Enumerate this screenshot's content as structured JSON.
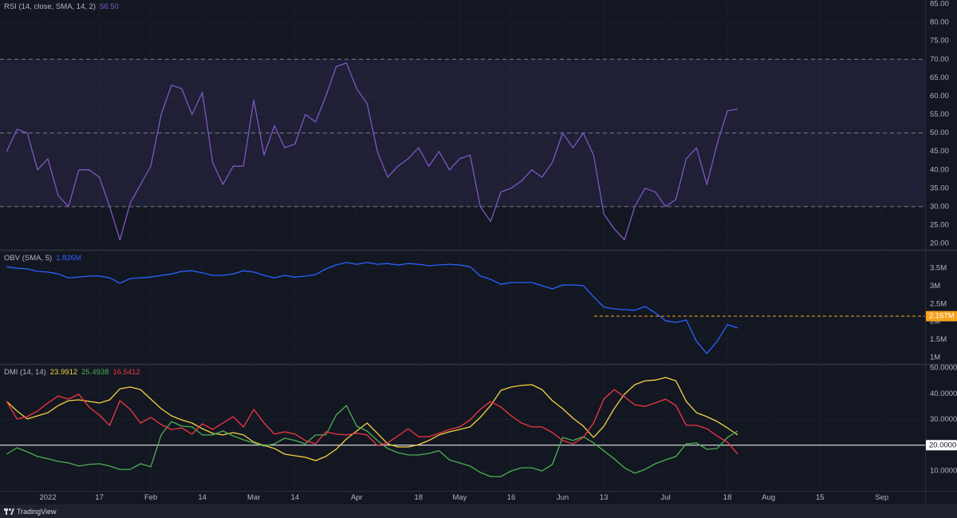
{
  "chart_data": [
    {
      "type": "line",
      "title": "RSI (14, close, SMA, 14, 2)",
      "ylim": [
        18.5,
        86.1
      ],
      "yticks": [
        {
          "value": 20,
          "label": "20.00"
        },
        {
          "value": 25,
          "label": "25.00"
        },
        {
          "value": 30,
          "label": "30.00"
        },
        {
          "value": 35,
          "label": "35.00"
        },
        {
          "value": 40,
          "label": "40.00"
        },
        {
          "value": 45,
          "label": "45.00"
        },
        {
          "value": 50,
          "label": "50.00"
        },
        {
          "value": 55,
          "label": "55.00"
        },
        {
          "value": 60,
          "label": "60.00"
        },
        {
          "value": 65,
          "label": "65.00"
        },
        {
          "value": 70,
          "label": "70.00"
        },
        {
          "value": 75,
          "label": "75.00"
        },
        {
          "value": 80,
          "label": "80.00"
        },
        {
          "value": 85,
          "label": "85.00"
        }
      ],
      "grid": true,
      "bands": {
        "lower": 30,
        "middle": 50,
        "upper": 70,
        "color": "#7e57c2"
      },
      "series": [
        {
          "color": "#7e57c2",
          "last_label": "56.50",
          "values": [
            45,
            51,
            50,
            40,
            43,
            33,
            30,
            40,
            40,
            38,
            30,
            21,
            31,
            36,
            41,
            55,
            63,
            62,
            55,
            61,
            42,
            36,
            41,
            41,
            59,
            44,
            52,
            46,
            47,
            55,
            53,
            60,
            68,
            69,
            62,
            58,
            45,
            38,
            41,
            43,
            46,
            41,
            45,
            40,
            43,
            44,
            30,
            26,
            34,
            35,
            37,
            40,
            38,
            42,
            50,
            46,
            50,
            44,
            28,
            24,
            21,
            30,
            35,
            34,
            30,
            32,
            43,
            46,
            36,
            47,
            56,
            56.5,
            null,
            null,
            null,
            null,
            null,
            null,
            null,
            null,
            null,
            null,
            null,
            null,
            null,
            null,
            null,
            null,
            null
          ]
        }
      ]
    },
    {
      "type": "line",
      "title": "OBV (SMA, 5)",
      "ylim": [
        840000,
        3970000
      ],
      "yticks": [
        {
          "value": 1000000,
          "label": "1M"
        },
        {
          "value": 1500000,
          "label": "1.5M"
        },
        {
          "value": 2000000,
          "label": "2M"
        },
        {
          "value": 2500000,
          "label": "2.5M"
        },
        {
          "value": 3000000,
          "label": "3M"
        },
        {
          "value": 3500000,
          "label": "3.5M"
        }
      ],
      "grid": true,
      "hline": {
        "value": 2157000,
        "label": "2.157M",
        "color": "#f7a21b",
        "text_color": "#ffffff",
        "style": "dashed"
      },
      "series": [
        {
          "color": "#2962ff",
          "last_label": "1.826M",
          "values": [
            3540000,
            3500000,
            3480000,
            3410000,
            3390000,
            3340000,
            3230000,
            3250000,
            3280000,
            3280000,
            3230000,
            3080000,
            3210000,
            3230000,
            3250000,
            3300000,
            3340000,
            3410000,
            3430000,
            3370000,
            3300000,
            3300000,
            3340000,
            3430000,
            3390000,
            3300000,
            3230000,
            3300000,
            3250000,
            3280000,
            3320000,
            3480000,
            3590000,
            3660000,
            3610000,
            3660000,
            3610000,
            3630000,
            3590000,
            3630000,
            3610000,
            3570000,
            3590000,
            3610000,
            3590000,
            3540000,
            3280000,
            3190000,
            3050000,
            3100000,
            3100000,
            3100000,
            3010000,
            2920000,
            3030000,
            3030000,
            3010000,
            2700000,
            2410000,
            2360000,
            2340000,
            2320000,
            2430000,
            2250000,
            2030000,
            1980000,
            2050000,
            1450000,
            1110000,
            1450000,
            1920000,
            1826000,
            null,
            null,
            null,
            null,
            null,
            null,
            null,
            null,
            null,
            null,
            null,
            null,
            null,
            null,
            null,
            null,
            null
          ]
        }
      ]
    },
    {
      "type": "line",
      "title": "DMI (14, 14)",
      "ylim": [
        2.25,
        50.93
      ],
      "yticks": [
        {
          "value": 10,
          "label": "10.0000"
        },
        {
          "value": 20,
          "label": "20.0000"
        },
        {
          "value": 30,
          "label": "30.0000"
        },
        {
          "value": 40,
          "label": "40.0000"
        },
        {
          "value": 50,
          "label": "50.0000"
        }
      ],
      "grid": true,
      "hline": {
        "value": 20,
        "label": "20.0000",
        "color": "#ffffff",
        "text_color": "#131722",
        "style": "solid"
      },
      "categories": [
        null,
        null,
        null,
        null,
        "2022",
        null,
        null,
        null,
        null,
        "17",
        null,
        null,
        null,
        null,
        "Feb",
        null,
        null,
        null,
        null,
        "14",
        null,
        null,
        null,
        null,
        "Mar",
        null,
        null,
        null,
        "14",
        null,
        null,
        null,
        null,
        null,
        "Apr",
        null,
        null,
        null,
        null,
        null,
        "18",
        null,
        null,
        null,
        "May",
        null,
        null,
        null,
        null,
        "16",
        null,
        null,
        null,
        null,
        "Jun",
        null,
        null,
        null,
        "13",
        null,
        null,
        null,
        null,
        null,
        "Jul",
        null,
        null,
        null,
        null,
        null,
        "18",
        null,
        null,
        null,
        "Aug",
        null,
        null,
        null,
        null,
        "15",
        null,
        null,
        null,
        null,
        null,
        "Sep",
        null,
        null,
        null
      ],
      "series": [
        {
          "color": "#f5d142",
          "last_label": "23.9912",
          "values": [
            37,
            33.3,
            30.2,
            31.4,
            32.6,
            35.4,
            37.3,
            37.6,
            37,
            36.4,
            37.6,
            41.9,
            42.6,
            41.6,
            37.9,
            34.2,
            31.4,
            29.8,
            28.6,
            26.4,
            24.6,
            24,
            24.9,
            24,
            21.2,
            19.9,
            18.7,
            16.5,
            15.9,
            15.3,
            14,
            15.6,
            18.4,
            22.4,
            25.5,
            28.6,
            24.6,
            20.5,
            19.3,
            19.3,
            20.2,
            21.8,
            24,
            25.2,
            26.1,
            27.1,
            30.8,
            35.4,
            41.3,
            42.6,
            43.2,
            43.5,
            41.6,
            37.3,
            34.2,
            30.5,
            27.4,
            23,
            27.4,
            34.2,
            39.8,
            43.5,
            45,
            45.3,
            46.3,
            45,
            37,
            32.6,
            31.1,
            29.2,
            26.7,
            23.9912,
            null,
            null,
            null,
            null,
            null,
            null,
            null,
            null,
            null,
            null,
            null,
            null,
            null,
            null,
            null,
            null,
            null
          ]
        },
        {
          "color": "#4caf50",
          "last_label": "25.4938",
          "values": [
            16.5,
            19,
            17.4,
            15.6,
            14.7,
            13.7,
            13.1,
            11.9,
            12.5,
            12.8,
            11.9,
            10.6,
            10.6,
            12.8,
            11.6,
            24,
            29.2,
            27.4,
            27.1,
            24,
            24,
            25.5,
            23.6,
            22.1,
            20.9,
            19.6,
            20.5,
            22.7,
            21.8,
            20.5,
            24,
            24,
            31.7,
            35.4,
            27.4,
            25.5,
            21.8,
            18.7,
            17.1,
            16.2,
            16.2,
            16.8,
            17.8,
            14.3,
            13.1,
            11.9,
            9.4,
            7.8,
            7.8,
            10,
            11.2,
            11.2,
            10,
            12.5,
            23,
            21.8,
            23.3,
            20.9,
            17.8,
            14.7,
            11.2,
            9.1,
            10.6,
            12.8,
            14.3,
            15.6,
            20.5,
            20.9,
            18.4,
            18.7,
            23,
            25.4938,
            null,
            null,
            null,
            null,
            null,
            null,
            null,
            null,
            null,
            null,
            null,
            null,
            null,
            null,
            null,
            null,
            null
          ]
        },
        {
          "color": "#f23645",
          "last_label": "16.5412",
          "values": [
            37,
            30.2,
            31.1,
            33.3,
            36.4,
            39.1,
            37.9,
            39.8,
            34.8,
            31.7,
            27.7,
            37.3,
            33.9,
            28.6,
            30.8,
            28,
            26.1,
            26.7,
            24.3,
            28.3,
            26.1,
            28.6,
            31.1,
            27.1,
            33.9,
            28.6,
            24.3,
            25.2,
            24.3,
            21.8,
            20.5,
            25.2,
            24.3,
            24,
            24.6,
            24,
            19.9,
            20.9,
            23.6,
            26.4,
            23.3,
            23.3,
            24.6,
            26.1,
            27.1,
            29.8,
            33.9,
            37,
            34.8,
            31.4,
            28.6,
            27.1,
            27.1,
            24.9,
            21.8,
            20.5,
            23,
            28.6,
            37.9,
            41.6,
            38.8,
            35.7,
            35.1,
            36.4,
            37.9,
            35.4,
            27.7,
            27.7,
            26.4,
            23.6,
            21.2,
            16.5412,
            null,
            null,
            null,
            null,
            null,
            null,
            null,
            null,
            null,
            null,
            null,
            null,
            null,
            null,
            null,
            null,
            null
          ]
        }
      ]
    }
  ],
  "footer": {
    "brand": "TradingView"
  }
}
